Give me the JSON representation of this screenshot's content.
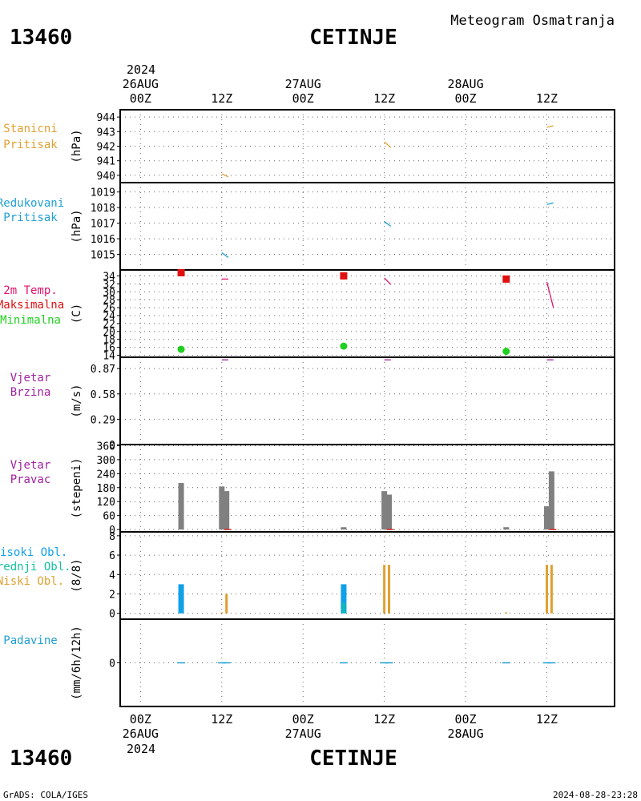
{
  "header": {
    "station_id": "13460",
    "station_name": "CETINJE",
    "product_title": "Meteogram Osmatranja",
    "footer_left": "GrADS: COLA/IGES",
    "footer_right": "2024-08-28-23:28"
  },
  "time_axis": {
    "year": "2024",
    "ticks": [
      {
        "hour": 0,
        "label": "00Z",
        "date": "26AUG"
      },
      {
        "hour": 12,
        "label": "12Z",
        "date": ""
      },
      {
        "hour": 24,
        "label": "00Z",
        "date": "27AUG"
      },
      {
        "hour": 36,
        "label": "12Z",
        "date": ""
      },
      {
        "hour": 48,
        "label": "00Z",
        "date": "28AUG"
      },
      {
        "hour": 60,
        "label": "12Z",
        "date": ""
      }
    ],
    "range": [
      -3,
      70
    ]
  },
  "colors": {
    "pressure_station": "#e0a030",
    "pressure_reduced": "#20a0d0",
    "temp_label": "#e0106a",
    "temp_max": "#e01010",
    "temp_min": "#20d020",
    "wind": "#a020a0",
    "wind_dir_bar": "#808080",
    "cloud_high": "#10a0e8",
    "cloud_mid": "#10c0a0",
    "cloud_low": "#e0a030",
    "precip": "#20a0d0"
  },
  "chart_data": [
    {
      "type": "line",
      "panel": "station_pressure",
      "labels": [
        "Stanicni",
        "Pritisak"
      ],
      "ylabel": "(hPa)",
      "ylim": [
        939.5,
        944.5
      ],
      "yticks": [
        940,
        941,
        942,
        943,
        944
      ],
      "series": [
        {
          "name": "Stanicni Pritisak",
          "x": [
            12,
            12.5,
            36,
            36.5,
            60,
            60.5
          ],
          "values": [
            940.1,
            939.9,
            942.3,
            941.9,
            943.3,
            943.4
          ],
          "segments": true
        }
      ]
    },
    {
      "type": "line",
      "panel": "reduced_pressure",
      "labels": [
        "Redukovani",
        "Pritisak"
      ],
      "ylabel": "(hPa)",
      "ylim": [
        1014.0,
        1019.6
      ],
      "yticks": [
        1015,
        1016,
        1017,
        1018,
        1019
      ],
      "series": [
        {
          "name": "Redukovani Pritisak",
          "x": [
            12,
            12.5,
            36,
            36.5,
            60,
            60.5
          ],
          "values": [
            1015.1,
            1014.8,
            1017.1,
            1016.8,
            1018.2,
            1018.3
          ],
          "segments": true
        }
      ]
    },
    {
      "type": "scatter",
      "panel": "temperature",
      "labels": [
        "2m Temp.",
        "Maksimalna",
        "Minimalna"
      ],
      "ylabel": "(C)",
      "ylim": [
        13.5,
        35.5
      ],
      "yticks": [
        14,
        16,
        18,
        20,
        22,
        24,
        26,
        28,
        30,
        32,
        34
      ],
      "series": [
        {
          "name": "2m Temp.",
          "x": [
            12,
            12.5,
            36,
            36.5,
            60,
            60.5
          ],
          "values": [
            33.2,
            33.2,
            33.5,
            31.8,
            32.5,
            26.0
          ],
          "segments": true
        },
        {
          "name": "Maksimalna",
          "x": [
            6,
            30,
            54
          ],
          "values": [
            34.8,
            34.0,
            33.2
          ]
        },
        {
          "name": "Minimalna",
          "x": [
            6,
            30,
            54
          ],
          "values": [
            15.5,
            16.3,
            15.0
          ]
        }
      ]
    },
    {
      "type": "line",
      "panel": "wind_speed",
      "labels": [
        "Vjetar",
        "Brzina"
      ],
      "ylabel": "(m/s)",
      "ylim": [
        0,
        1.0
      ],
      "yticks": [
        0,
        0.29,
        0.58,
        0.87
      ],
      "ytick_labels": [
        "0",
        "0.29",
        "0.58",
        "0.87"
      ],
      "series": [
        {
          "name": "Vjetar Brzina",
          "x": [
            12,
            12.5,
            36,
            36.5,
            60,
            60.5
          ],
          "values": [
            0.97,
            0.97,
            0.97,
            0.97,
            0.97,
            0.97
          ],
          "segments": true
        }
      ]
    },
    {
      "type": "bar",
      "panel": "wind_direction",
      "labels": [
        "Vjetar",
        "Pravac"
      ],
      "ylabel": "(stepeni)",
      "ylim": [
        -10,
        365
      ],
      "yticks": [
        0,
        60,
        120,
        180,
        240,
        300,
        360
      ],
      "series": [
        {
          "name": "Vjetar Pravac",
          "x": [
            6,
            12,
            12.7,
            30,
            36,
            36.7,
            54,
            60,
            60.7
          ],
          "values": [
            200,
            185,
            165,
            10,
            165,
            150,
            10,
            100,
            250
          ]
        }
      ]
    },
    {
      "type": "bar",
      "panel": "clouds",
      "labels": [
        "Visoki Obl.",
        "Srednji Obl.",
        "Niski Obl."
      ],
      "ylabel": "(8/8)",
      "ylim": [
        -0.6,
        8.4
      ],
      "yticks": [
        0,
        2,
        4,
        6,
        8
      ],
      "series": [
        {
          "name": "Visoki Obl.",
          "x": [
            6,
            30
          ],
          "values": [
            3,
            3
          ]
        },
        {
          "name": "Srednji Obl.",
          "x": [
            30,
            36.7
          ],
          "values": [
            1.1,
            1.1
          ]
        },
        {
          "name": "Niski Obl.",
          "x": [
            12,
            12.7,
            36,
            36.7,
            54,
            60,
            60.7
          ],
          "values": [
            0.1,
            2,
            5,
            5,
            0.1,
            5,
            5
          ]
        }
      ]
    },
    {
      "type": "bar",
      "panel": "precipitation",
      "labels": [
        "Padavine"
      ],
      "ylabel": "(mm/6h/12h)",
      "ylim": [
        -1,
        1
      ],
      "yticks": [
        0
      ],
      "series": [
        {
          "name": "Padavine",
          "x": [
            6,
            12,
            12.7,
            30,
            36,
            36.7,
            54,
            60,
            60.7
          ],
          "values": [
            0,
            0,
            0,
            0,
            0,
            0,
            0,
            0,
            0
          ]
        }
      ]
    }
  ]
}
